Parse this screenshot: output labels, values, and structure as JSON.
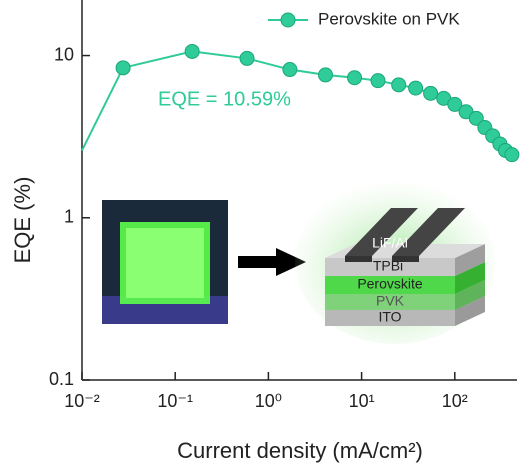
{
  "chart_data": {
    "type": "line",
    "xlabel": "Current density (mA/cm²)",
    "ylabel": "EQE (%)",
    "annotation": "EQE = 10.59%",
    "xscale": "log",
    "yscale": "log",
    "xlim": [
      0.01,
      465
    ],
    "ylim": [
      0.1,
      22
    ],
    "xticks": [
      {
        "value": 0.01,
        "label": "10⁻²"
      },
      {
        "value": 0.1,
        "label": "10⁻¹"
      },
      {
        "value": 1,
        "label": "10⁰"
      },
      {
        "value": 10,
        "label": "10¹"
      },
      {
        "value": 100,
        "label": "10²"
      }
    ],
    "yticks": [
      0.1,
      1,
      10
    ],
    "legend": "upper right",
    "series": [
      {
        "name": "Perovskite on PVK",
        "color": "#2fcb98",
        "x": [
          0.01,
          0.0276,
          0.152,
          0.59,
          1.7,
          4.1,
          8.4,
          15,
          25,
          38,
          55,
          76,
          100,
          132,
          170,
          210,
          255,
          305,
          350,
          410
        ],
        "values": [
          2.6,
          8.4,
          10.6,
          9.6,
          8.2,
          7.6,
          7.3,
          7.0,
          6.6,
          6.3,
          5.85,
          5.45,
          5.0,
          4.5,
          4.1,
          3.6,
          3.2,
          2.85,
          2.6,
          2.45
        ]
      }
    ]
  },
  "inset": {
    "layers": [
      "LiF/Al",
      "TPBi",
      "Perovskite",
      "PVK",
      "ITO"
    ]
  }
}
